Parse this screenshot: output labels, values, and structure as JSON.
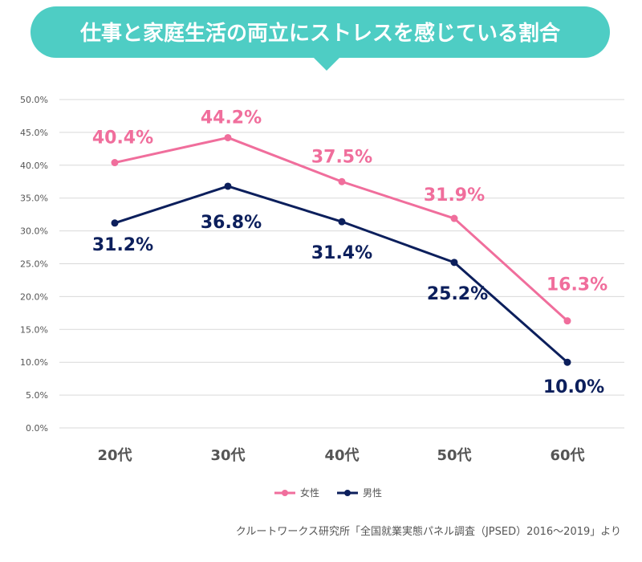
{
  "title": "仕事と家庭生活の両立にストレスを感じている割合",
  "source": "クルートワークス研究所「全国就業実態パネル調査（JPSED）2016〜2019」より",
  "colors": {
    "banner": "#4ecdc4",
    "banner_text": "#ffffff",
    "female": "#f06e9c",
    "male": "#0c1f5c",
    "grid": "#d9d9d9"
  },
  "chart_data": {
    "type": "line",
    "categories": [
      "20代",
      "30代",
      "40代",
      "50代",
      "60代"
    ],
    "series": [
      {
        "name": "女性",
        "values": [
          40.4,
          44.2,
          37.5,
          31.9,
          16.3
        ],
        "labels": [
          "40.4%",
          "44.2%",
          "37.5%",
          "31.9%",
          "16.3%"
        ]
      },
      {
        "name": "男性",
        "values": [
          31.2,
          36.8,
          31.4,
          25.2,
          10.0
        ],
        "labels": [
          "31.2%",
          "36.8%",
          "31.4%",
          "25.2%",
          "10.0%"
        ]
      }
    ],
    "ylim": [
      0,
      50
    ],
    "yticks": [
      "0.0%",
      "5.0%",
      "10.0%",
      "15.0%",
      "20.0%",
      "25.0%",
      "30.0%",
      "35.0%",
      "40.0%",
      "45.0%",
      "50.0%"
    ],
    "grid": true,
    "legend_position": "bottom-center"
  }
}
